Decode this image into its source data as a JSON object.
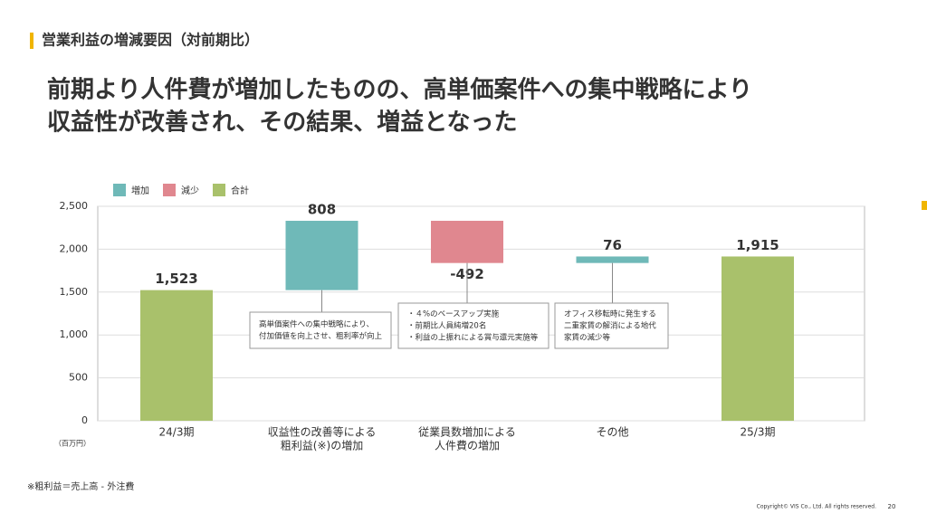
{
  "header": "営業利益の増減要因（対前期比）",
  "headline": [
    "前期より人件費が増加したものの、高単価案件への集中戦略により",
    "収益性が改善され、その結果、増益となった"
  ],
  "chart_data": {
    "type": "waterfall",
    "legend": [
      {
        "name": "増加",
        "color": "#6fb9b8"
      },
      {
        "name": "減少",
        "color": "#e0878f"
      },
      {
        "name": "合計",
        "color": "#a9c16b"
      }
    ],
    "categories": [
      [
        "24/3期"
      ],
      [
        "収益性の改善等による",
        "粗利益(※)の増加"
      ],
      [
        "従業員数増加による",
        "人件費の増加"
      ],
      [
        "その他"
      ],
      [
        "25/3期"
      ]
    ],
    "values": [
      1523,
      808,
      -492,
      76,
      1915
    ],
    "value_labels": [
      "1,523",
      "808",
      "-492",
      "76",
      "1,915"
    ],
    "bar_types": [
      "total",
      "increase",
      "decrease",
      "increase",
      "total"
    ],
    "colors": [
      "#a9c16b",
      "#6fb9b8",
      "#e0878f",
      "#6fb9b8",
      "#a9c16b"
    ],
    "ylim": [
      0,
      2500
    ],
    "yticks": [
      0,
      500,
      {
        "value": 1000,
        "label": "1,000"
      },
      {
        "value": 1500,
        "label": "1,500"
      },
      {
        "value": 2000,
        "label": "2,000"
      },
      {
        "value": 2500,
        "label": "2,500"
      }
    ],
    "y_unit": "（百万円）",
    "grid": true,
    "annotations": [
      {
        "lines": [
          "高単価案件への集中戦略により、",
          "付加価値を向上させ、粗利率が向上"
        ]
      },
      {
        "lines": [
          "・４%のベースアップ実施",
          "・前期比人員純増20名",
          "・利益の上振れによる賞与還元実施等"
        ]
      },
      {
        "lines": [
          "オフィス移転時に発生する",
          "二重家賃の解消による地代",
          "家賃の減少等"
        ]
      }
    ]
  },
  "footnote": "※粗利益＝売上高 - 外注費",
  "copyright": "Copyright© VIS Co., Ltd. All rights reserved.",
  "page_number": "20"
}
